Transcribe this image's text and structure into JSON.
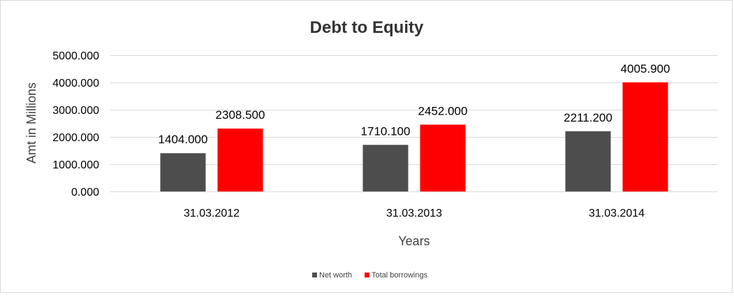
{
  "chart_data": {
    "type": "bar",
    "title": "Debt to Equity",
    "xlabel": "Years",
    "ylabel": "Amt in Millions",
    "categories": [
      "31.03.2012",
      "31.03.2013",
      "31.03.2014"
    ],
    "series": [
      {
        "name": "Net worth",
        "color": "#4d4d4d",
        "values": [
          1404.0,
          1710.1,
          2211.2
        ],
        "labels": [
          "1404.000",
          "1710.100",
          "2211.200"
        ]
      },
      {
        "name": "Total borrowings",
        "color": "#ff0000",
        "values": [
          2308.5,
          2452.0,
          4005.9
        ],
        "labels": [
          "2308.500",
          "2452.000",
          "4005.900"
        ]
      }
    ],
    "ylim": [
      0,
      5000
    ],
    "yticks": [
      0,
      1000,
      2000,
      3000,
      4000,
      5000
    ],
    "ytick_labels": [
      "0.000",
      "1000.000",
      "2000.000",
      "3000.000",
      "4000.000",
      "5000.000"
    ],
    "grid": true,
    "legend_position": "bottom"
  }
}
